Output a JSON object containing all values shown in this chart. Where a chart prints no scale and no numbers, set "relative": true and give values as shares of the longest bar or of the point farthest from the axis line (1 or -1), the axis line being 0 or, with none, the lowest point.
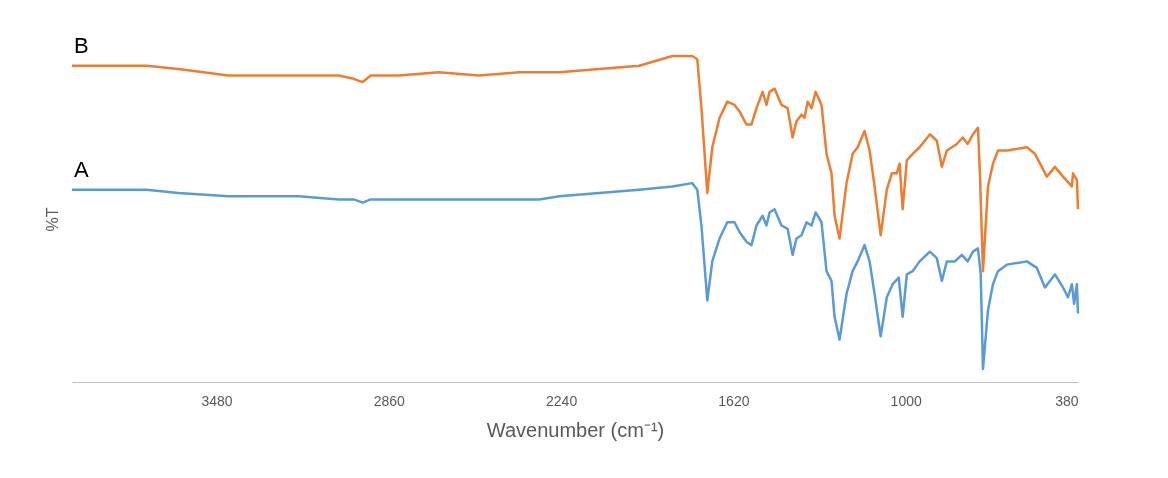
{
  "chart_data": {
    "type": "line",
    "relative": true,
    "xlabel": "Wavenumber (cm⁻¹)",
    "ylabel": "%T",
    "xlim": [
      4000,
      380
    ],
    "xticks": [
      3480,
      2860,
      2240,
      1620,
      1000,
      380
    ],
    "grid": false,
    "legend": false,
    "marker": "none",
    "line_style": "solid",
    "series": [
      {
        "name": "A",
        "color": "#5b9bd5",
        "x": [
          4000,
          3869,
          3732,
          3617,
          3437,
          3184,
          3040,
          2986,
          2954,
          2925,
          2824,
          2536,
          2391,
          2319,
          2247,
          2103,
          1959,
          1840,
          1768,
          1750,
          1735,
          1714,
          1696,
          1670,
          1642,
          1616,
          1598,
          1573,
          1555,
          1537,
          1515,
          1501,
          1490,
          1472,
          1447,
          1425,
          1407,
          1393,
          1375,
          1357,
          1339,
          1324,
          1303,
          1285,
          1267,
          1256,
          1238,
          1213,
          1191,
          1173,
          1148,
          1130,
          1112,
          1090,
          1068,
          1047,
          1025,
          1011,
          996,
          975,
          950,
          913,
          888,
          870,
          852,
          823,
          798,
          777,
          758,
          740,
          730,
          722,
          704,
          686,
          668,
          636,
          564,
          528,
          499,
          463,
          434,
          416,
          402,
          394,
          384,
          380
        ],
        "values": [
          0.59,
          0.59,
          0.59,
          0.58,
          0.57,
          0.57,
          0.56,
          0.56,
          0.55,
          0.56,
          0.56,
          0.56,
          0.56,
          0.56,
          0.57,
          0.58,
          0.59,
          0.6,
          0.61,
          0.59,
          0.48,
          0.25,
          0.37,
          0.44,
          0.49,
          0.49,
          0.46,
          0.43,
          0.42,
          0.48,
          0.51,
          0.48,
          0.52,
          0.53,
          0.48,
          0.47,
          0.39,
          0.44,
          0.45,
          0.49,
          0.48,
          0.52,
          0.49,
          0.34,
          0.31,
          0.2,
          0.13,
          0.27,
          0.34,
          0.37,
          0.42,
          0.37,
          0.27,
          0.14,
          0.26,
          0.3,
          0.32,
          0.2,
          0.33,
          0.34,
          0.37,
          0.4,
          0.38,
          0.31,
          0.37,
          0.37,
          0.39,
          0.37,
          0.4,
          0.41,
          0.33,
          0.04,
          0.22,
          0.3,
          0.34,
          0.36,
          0.37,
          0.35,
          0.29,
          0.33,
          0.29,
          0.26,
          0.3,
          0.24,
          0.3,
          0.21
        ]
      },
      {
        "name": "B",
        "color": "#ed7d31",
        "x": [
          4000,
          3869,
          3732,
          3617,
          3437,
          3184,
          3040,
          2986,
          2954,
          2925,
          2824,
          2680,
          2536,
          2391,
          2247,
          2103,
          1959,
          1840,
          1768,
          1750,
          1735,
          1714,
          1696,
          1670,
          1642,
          1616,
          1598,
          1573,
          1555,
          1537,
          1515,
          1501,
          1490,
          1472,
          1447,
          1425,
          1407,
          1393,
          1375,
          1364,
          1353,
          1339,
          1324,
          1303,
          1285,
          1267,
          1256,
          1238,
          1213,
          1191,
          1173,
          1148,
          1130,
          1112,
          1090,
          1068,
          1050,
          1032,
          1022,
          1011,
          996,
          975,
          950,
          913,
          888,
          870,
          852,
          816,
          795,
          777,
          758,
          740,
          733,
          722,
          704,
          686,
          668,
          636,
          564,
          535,
          492,
          463,
          434,
          402,
          398,
          384,
          380
        ],
        "values": [
          0.97,
          0.97,
          0.97,
          0.96,
          0.94,
          0.94,
          0.94,
          0.93,
          0.92,
          0.94,
          0.94,
          0.95,
          0.94,
          0.95,
          0.95,
          0.96,
          0.97,
          1.0,
          1.0,
          0.99,
          0.84,
          0.58,
          0.72,
          0.81,
          0.86,
          0.85,
          0.83,
          0.79,
          0.79,
          0.84,
          0.89,
          0.85,
          0.89,
          0.9,
          0.85,
          0.84,
          0.75,
          0.8,
          0.82,
          0.81,
          0.86,
          0.84,
          0.89,
          0.85,
          0.7,
          0.64,
          0.51,
          0.44,
          0.61,
          0.7,
          0.72,
          0.77,
          0.71,
          0.6,
          0.45,
          0.59,
          0.64,
          0.64,
          0.67,
          0.53,
          0.68,
          0.7,
          0.72,
          0.76,
          0.74,
          0.66,
          0.71,
          0.73,
          0.75,
          0.73,
          0.76,
          0.78,
          0.64,
          0.34,
          0.6,
          0.67,
          0.71,
          0.71,
          0.72,
          0.7,
          0.63,
          0.66,
          0.63,
          0.6,
          0.64,
          0.62,
          0.53
        ]
      }
    ]
  }
}
